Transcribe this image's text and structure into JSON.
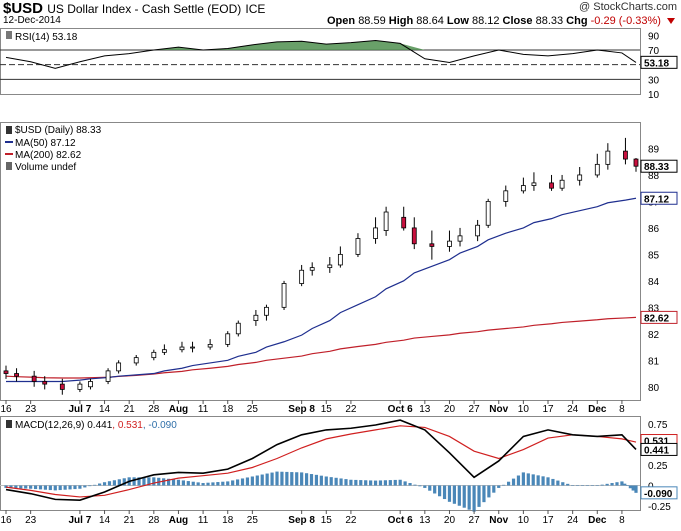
{
  "header": {
    "symbol": "$USD",
    "name": "US Dollar Index - Cash Settle (EOD)",
    "exchange": "ICE",
    "date": "12-Dec-2014",
    "brand": "@ StockCharts.com",
    "open_label": "Open",
    "open": "88.59",
    "high_label": "High",
    "high": "88.64",
    "low_label": "Low",
    "low": "88.12",
    "close_label": "Close",
    "close": "88.33",
    "chg_label": "Chg",
    "chg": "-0.29 (-0.33%)"
  },
  "chart_data": [
    {
      "type": "line",
      "panel": "rsi",
      "legend": "RSI(14) 53.18",
      "current_label": "53.18",
      "ylim": [
        10,
        100
      ],
      "yticks": [
        10,
        30,
        50,
        70,
        90
      ],
      "reference_lines": [
        30,
        50,
        70
      ],
      "x": [
        "2014-06-16",
        "2014-06-23",
        "2014-06-30",
        "2014-07-07",
        "2014-07-14",
        "2014-07-21",
        "2014-07-28",
        "2014-08-04",
        "2014-08-11",
        "2014-08-18",
        "2014-08-25",
        "2014-09-01",
        "2014-09-08",
        "2014-09-15",
        "2014-09-22",
        "2014-09-29",
        "2014-10-06",
        "2014-10-13",
        "2014-10-20",
        "2014-10-27",
        "2014-11-03",
        "2014-11-10",
        "2014-11-17",
        "2014-11-24",
        "2014-12-01",
        "2014-12-08",
        "2014-12-12"
      ],
      "values": [
        60,
        54,
        45,
        54,
        62,
        65,
        70,
        74,
        70,
        72,
        77,
        81,
        82,
        78,
        80,
        83,
        79,
        58,
        53,
        62,
        70,
        64,
        62,
        65,
        70,
        66,
        53
      ]
    },
    {
      "type": "candlestick",
      "panel": "price",
      "legend": [
        {
          "label": "$USD (Daily) 88.33",
          "color": "#000000"
        },
        {
          "label": "MA(50) 87.12",
          "color": "#1f2f8f"
        },
        {
          "label": "MA(200) 82.62",
          "color": "#c0202a"
        },
        {
          "label": "Volume undef",
          "color": "#555555"
        }
      ],
      "ylim": [
        79.5,
        90
      ],
      "yticks": [
        80,
        81,
        82,
        83,
        84,
        85,
        86,
        87,
        88,
        89
      ],
      "last_labels": {
        "close": "88.33",
        "ma50": "87.12",
        "ma200": "82.62"
      },
      "x": [
        "2014-06-16",
        "2014-06-19",
        "2014-06-24",
        "2014-06-27",
        "2014-07-02",
        "2014-07-07",
        "2014-07-10",
        "2014-07-15",
        "2014-07-18",
        "2014-07-23",
        "2014-07-28",
        "2014-07-31",
        "2014-08-05",
        "2014-08-08",
        "2014-08-13",
        "2014-08-18",
        "2014-08-21",
        "2014-08-26",
        "2014-08-29",
        "2014-09-03",
        "2014-09-08",
        "2014-09-11",
        "2014-09-16",
        "2014-09-19",
        "2014-09-24",
        "2014-09-29",
        "2014-10-02",
        "2014-10-07",
        "2014-10-10",
        "2014-10-15",
        "2014-10-20",
        "2014-10-23",
        "2014-10-28",
        "2014-10-31",
        "2014-11-05",
        "2014-11-10",
        "2014-11-13",
        "2014-11-18",
        "2014-11-21",
        "2014-11-26",
        "2014-12-01",
        "2014-12-04",
        "2014-12-09",
        "2014-12-12"
      ],
      "open": [
        80.6,
        80.5,
        80.4,
        80.2,
        80.1,
        79.9,
        80.0,
        80.2,
        80.6,
        80.9,
        81.1,
        81.3,
        81.4,
        81.5,
        81.5,
        81.6,
        82.0,
        82.5,
        82.7,
        83.0,
        83.9,
        84.4,
        84.5,
        84.6,
        85.0,
        85.6,
        85.9,
        86.4,
        86.0,
        85.4,
        85.3,
        85.5,
        85.7,
        86.1,
        87.0,
        87.4,
        87.6,
        87.7,
        87.5,
        87.8,
        88.0,
        88.4,
        88.9,
        88.6
      ],
      "high": [
        80.8,
        80.7,
        80.6,
        80.4,
        80.3,
        80.2,
        80.3,
        80.7,
        81.0,
        81.2,
        81.4,
        81.6,
        81.7,
        81.7,
        81.8,
        82.1,
        82.5,
        82.9,
        83.1,
        84.0,
        84.6,
        84.7,
        84.9,
        85.3,
        85.8,
        86.4,
        86.8,
        86.8,
        86.4,
        85.9,
        85.9,
        86.0,
        86.3,
        87.1,
        87.6,
        87.9,
        88.1,
        88.0,
        88.0,
        88.3,
        88.8,
        89.2,
        89.4,
        88.64
      ],
      "low": [
        80.3,
        80.2,
        80.0,
        79.9,
        79.7,
        79.8,
        79.9,
        80.1,
        80.5,
        80.8,
        81.0,
        81.2,
        81.3,
        81.3,
        81.4,
        81.5,
        81.9,
        82.3,
        82.5,
        82.9,
        83.8,
        84.2,
        84.3,
        84.5,
        84.9,
        85.4,
        85.7,
        85.9,
        85.2,
        84.8,
        85.1,
        85.3,
        85.5,
        86.0,
        86.8,
        87.3,
        87.4,
        87.4,
        87.4,
        87.6,
        87.9,
        88.2,
        88.4,
        88.12
      ],
      "close": [
        80.5,
        80.4,
        80.2,
        80.1,
        79.9,
        80.1,
        80.2,
        80.6,
        80.9,
        81.1,
        81.3,
        81.4,
        81.5,
        81.5,
        81.6,
        82.0,
        82.4,
        82.7,
        83.0,
        83.9,
        84.4,
        84.5,
        84.6,
        85.0,
        85.6,
        86.0,
        86.6,
        86.0,
        85.4,
        85.3,
        85.5,
        85.7,
        86.1,
        87.0,
        87.4,
        87.6,
        87.7,
        87.5,
        87.8,
        88.0,
        88.4,
        88.9,
        88.6,
        88.33
      ],
      "ma50": [
        80.2,
        80.2,
        80.2,
        80.2,
        80.2,
        80.25,
        80.3,
        80.35,
        80.4,
        80.45,
        80.5,
        80.6,
        80.7,
        80.8,
        80.9,
        81.0,
        81.15,
        81.3,
        81.5,
        81.7,
        81.95,
        82.2,
        82.5,
        82.8,
        83.1,
        83.4,
        83.7,
        84.0,
        84.3,
        84.55,
        84.8,
        85.05,
        85.3,
        85.55,
        85.8,
        86.0,
        86.2,
        86.35,
        86.5,
        86.65,
        86.8,
        86.95,
        87.05,
        87.12
      ],
      "ma200": [
        80.4,
        80.38,
        80.36,
        80.34,
        80.33,
        80.33,
        80.34,
        80.36,
        80.39,
        80.43,
        80.48,
        80.53,
        80.58,
        80.64,
        80.7,
        80.77,
        80.84,
        80.92,
        81.0,
        81.08,
        81.16,
        81.25,
        81.34,
        81.43,
        81.52,
        81.6,
        81.68,
        81.76,
        81.84,
        81.9,
        81.96,
        82.02,
        82.08,
        82.14,
        82.2,
        82.26,
        82.32,
        82.38,
        82.43,
        82.48,
        82.53,
        82.57,
        82.6,
        82.62
      ]
    },
    {
      "type": "line",
      "panel": "macd",
      "legend": [
        {
          "label": "MACD(12,26,9)",
          "value": "0.441",
          "color": "#000000"
        },
        {
          "label": "",
          "value": "0.531",
          "color": "#d02020"
        },
        {
          "label": "",
          "value": "-0.090",
          "color": "#2f6fa8"
        }
      ],
      "last_labels": {
        "macd": "0.441",
        "signal": "0.531",
        "histogram": "-0.090"
      },
      "ylim": [
        -0.3,
        0.85
      ],
      "yticks": [
        -0.25,
        0,
        0.25,
        0.5,
        0.75
      ],
      "x": [
        "2014-06-16",
        "2014-06-23",
        "2014-06-30",
        "2014-07-07",
        "2014-07-14",
        "2014-07-21",
        "2014-07-28",
        "2014-08-04",
        "2014-08-11",
        "2014-08-18",
        "2014-08-25",
        "2014-09-01",
        "2014-09-08",
        "2014-09-15",
        "2014-09-22",
        "2014-09-29",
        "2014-10-06",
        "2014-10-13",
        "2014-10-20",
        "2014-10-27",
        "2014-11-03",
        "2014-11-10",
        "2014-11-17",
        "2014-11-24",
        "2014-12-01",
        "2014-12-08",
        "2014-12-12"
      ],
      "macd": [
        -0.05,
        -0.1,
        -0.17,
        -0.18,
        -0.08,
        0.05,
        0.13,
        0.16,
        0.15,
        0.2,
        0.33,
        0.5,
        0.62,
        0.68,
        0.7,
        0.74,
        0.8,
        0.68,
        0.4,
        0.1,
        0.3,
        0.6,
        0.68,
        0.62,
        0.6,
        0.62,
        0.441
      ],
      "signal": [
        -0.02,
        -0.06,
        -0.11,
        -0.14,
        -0.12,
        -0.05,
        0.03,
        0.09,
        0.12,
        0.15,
        0.22,
        0.33,
        0.46,
        0.57,
        0.63,
        0.68,
        0.73,
        0.71,
        0.6,
        0.42,
        0.33,
        0.44,
        0.58,
        0.62,
        0.6,
        0.57,
        0.531
      ],
      "histogram": [
        -0.03,
        -0.04,
        -0.06,
        -0.04,
        0.04,
        0.1,
        0.1,
        0.07,
        0.03,
        0.05,
        0.11,
        0.17,
        0.16,
        0.11,
        0.07,
        0.06,
        0.07,
        -0.03,
        -0.2,
        -0.32,
        -0.03,
        0.16,
        0.1,
        0.0,
        0.0,
        0.05,
        -0.09
      ]
    }
  ],
  "x_axis": {
    "ticks": [
      "16",
      "23",
      "Jul 7",
      "14",
      "21",
      "28",
      "Aug",
      "11",
      "18",
      "25",
      "Sep 8",
      "15",
      "22",
      "Oct 6",
      "13",
      "20",
      "27",
      "Nov",
      "10",
      "17",
      "24",
      "Dec",
      "8"
    ],
    "bold": [
      "Jul 7",
      "Aug",
      "Sep 8",
      "Oct 6",
      "Nov",
      "Dec"
    ]
  }
}
